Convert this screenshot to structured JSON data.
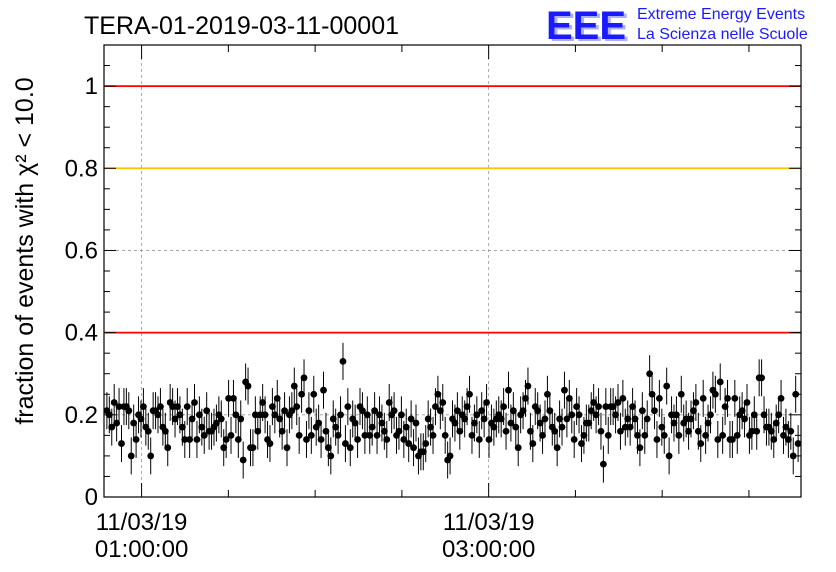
{
  "logo": {
    "letters": "EEE",
    "line1": "Extreme Energy Events",
    "line2": "La Scienza nelle Scuole"
  },
  "colors": {
    "threshold_high": "#ff0000",
    "threshold_mid": "#ffc000",
    "points": "#000000",
    "logo": "#1a1aff"
  },
  "chart_data": {
    "type": "scatter",
    "title": "TERA-01-2019-03-11-00001",
    "ylabel": "fraction of events with χ² < 10.0",
    "xlabel": "",
    "ylim": [
      0,
      1.1
    ],
    "yticks": [
      0,
      0.2,
      0.4,
      0.6,
      0.8,
      1
    ],
    "ytick_labels": [
      "0",
      "0.2",
      "0.4",
      "0.6",
      "0.8",
      "1"
    ],
    "xlim": [
      "2019-03-11 00:47",
      "2019-03-11 04:48"
    ],
    "xticks": [
      {
        "time": "2019-03-11 01:00:00",
        "label_date": "11/03/19",
        "label_time": "01:00:00"
      },
      {
        "time": "2019-03-11 03:00:00",
        "label_date": "11/03/19",
        "label_time": "03:00:00"
      }
    ],
    "grid": true,
    "threshold_lines": [
      {
        "y": 1.0,
        "color": "#ff0000"
      },
      {
        "y": 0.8,
        "color": "#ffc000"
      },
      {
        "y": 0.4,
        "color": "#ff0000"
      }
    ],
    "series": [
      {
        "x_start": "2019-03-11 00:48",
        "x_end": "2019-03-11 04:47",
        "y": [
          0.21,
          0.2,
          0.17,
          0.23,
          0.18,
          0.22,
          0.13,
          0.22,
          0.22,
          0.21,
          0.1,
          0.18,
          0.14,
          0.2,
          0.19,
          0.22,
          0.17,
          0.16,
          0.1,
          0.21,
          0.21,
          0.2,
          0.22,
          0.17,
          0.16,
          0.12,
          0.23,
          0.22,
          0.19,
          0.22,
          0.2,
          0.17,
          0.14,
          0.22,
          0.14,
          0.19,
          0.23,
          0.14,
          0.2,
          0.17,
          0.15,
          0.21,
          0.16,
          0.16,
          0.17,
          0.18,
          0.2,
          0.19,
          0.12,
          0.14,
          0.24,
          0.15,
          0.24,
          0.2,
          0.14,
          0.19,
          0.09,
          0.28,
          0.27,
          0.12,
          0.12,
          0.2,
          0.16,
          0.2,
          0.23,
          0.2,
          0.14,
          0.13,
          0.22,
          0.2,
          0.24,
          0.19,
          0.16,
          0.21,
          0.12,
          0.2,
          0.21,
          0.27,
          0.22,
          0.15,
          0.25,
          0.29,
          0.14,
          0.21,
          0.15,
          0.25,
          0.17,
          0.18,
          0.14,
          0.26,
          0.16,
          0.12,
          0.1,
          0.19,
          0.17,
          0.15,
          0.2,
          0.33,
          0.13,
          0.22,
          0.12,
          0.19,
          0.18,
          0.14,
          0.22,
          0.21,
          0.15,
          0.2,
          0.15,
          0.17,
          0.21,
          0.15,
          0.2,
          0.18,
          0.16,
          0.14,
          0.23,
          0.2,
          0.21,
          0.15,
          0.16,
          0.2,
          0.14,
          0.17,
          0.13,
          0.19,
          0.12,
          0.18,
          0.1,
          0.11,
          0.11,
          0.13,
          0.19,
          0.17,
          0.15,
          0.22,
          0.25,
          0.21,
          0.23,
          0.15,
          0.09,
          0.1,
          0.19,
          0.18,
          0.21,
          0.16,
          0.2,
          0.19,
          0.22,
          0.25,
          0.15,
          0.18,
          0.2,
          0.14,
          0.21,
          0.19,
          0.23,
          0.14,
          0.18,
          0.17,
          0.19,
          0.2,
          0.19,
          0.22,
          0.16,
          0.26,
          0.18,
          0.21,
          0.17,
          0.12,
          0.2,
          0.21,
          0.24,
          0.27,
          0.16,
          0.13,
          0.22,
          0.21,
          0.18,
          0.15,
          0.19,
          0.25,
          0.21,
          0.17,
          0.16,
          0.12,
          0.19,
          0.17,
          0.26,
          0.19,
          0.24,
          0.2,
          0.14,
          0.22,
          0.2,
          0.13,
          0.15,
          0.18,
          0.18,
          0.21,
          0.23,
          0.2,
          0.22,
          0.16,
          0.08,
          0.22,
          0.15,
          0.22,
          0.22,
          0.2,
          0.23,
          0.16,
          0.24,
          0.17,
          0.19,
          0.17,
          0.22,
          0.19,
          0.15,
          0.12,
          0.21,
          0.15,
          0.19,
          0.3,
          0.25,
          0.21,
          0.14,
          0.24,
          0.17,
          0.15,
          0.27,
          0.1,
          0.2,
          0.18,
          0.2,
          0.15,
          0.25,
          0.18,
          0.19,
          0.16,
          0.19,
          0.21,
          0.23,
          0.16,
          0.13,
          0.24,
          0.15,
          0.18,
          0.2,
          0.26,
          0.25,
          0.14,
          0.28,
          0.15,
          0.22,
          0.24,
          0.14,
          0.14,
          0.24,
          0.15,
          0.2,
          0.21,
          0.19,
          0.23,
          0.15,
          0.16,
          0.2,
          0.16,
          0.29,
          0.29,
          0.2,
          0.17,
          0.17,
          0.16,
          0.14,
          0.18,
          0.2,
          0.24,
          0.15,
          0.17,
          0.14,
          0.16,
          0.1,
          0.25,
          0.13
        ]
      }
    ]
  }
}
